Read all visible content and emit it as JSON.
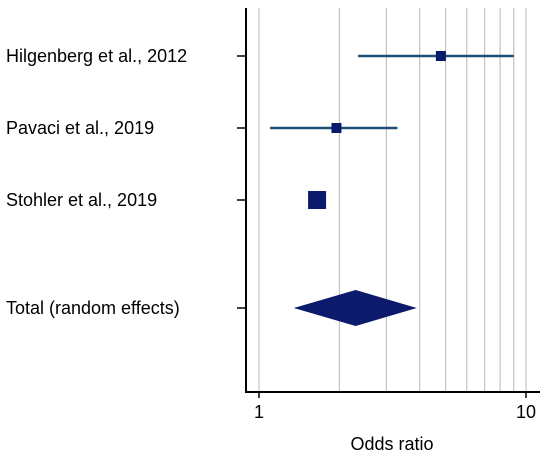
{
  "chart_data": {
    "type": "forest",
    "xlabel": "Odds ratio",
    "x_scale": "log",
    "xlim": [
      0.95,
      10.5
    ],
    "x_ticks": [
      1,
      10
    ],
    "x_tick_labels": [
      "1",
      "10"
    ],
    "gridlines": [
      1,
      2,
      3,
      4,
      5,
      6,
      7,
      8,
      9,
      10
    ],
    "grid": true,
    "colors": {
      "ci_line": "#1f4e79",
      "marker": "#0b1a6b",
      "diamond": "#0b1a6b"
    },
    "studies": [
      {
        "label": "Hilgenberg et al., 2012",
        "or": 4.8,
        "ci_low": 2.35,
        "ci_high": 9.0,
        "weight": "small"
      },
      {
        "label": "Pavaci et al., 2019",
        "or": 1.95,
        "ci_low": 1.1,
        "ci_high": 3.3,
        "weight": "small"
      },
      {
        "label": "Stohler et al., 2019",
        "or": 1.65,
        "ci_low": 1.58,
        "ci_high": 1.73,
        "weight": "large"
      }
    ],
    "summary": {
      "label": "Total (random effects)",
      "or": 2.3,
      "ci_low": 1.35,
      "ci_high": 3.9
    }
  }
}
